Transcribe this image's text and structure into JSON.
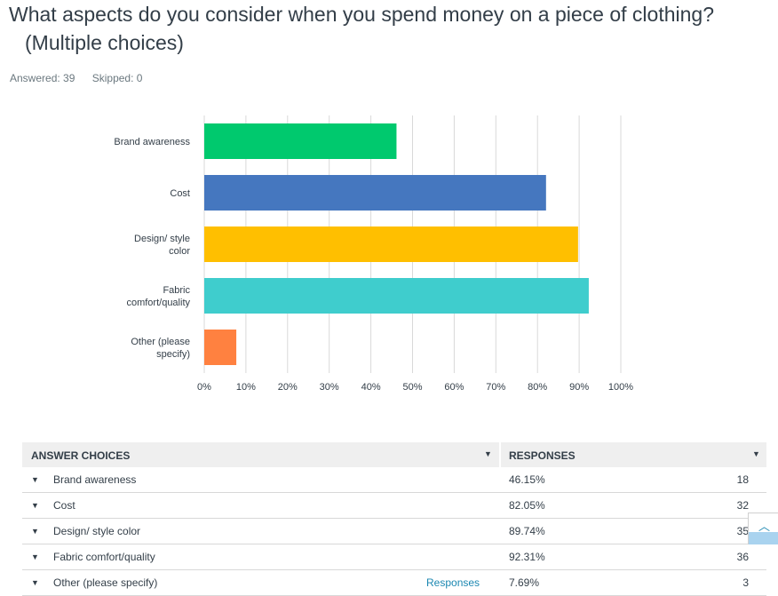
{
  "question": {
    "title_line1": "What aspects do you consider when you spend money on a piece of clothing?",
    "title_line2": "(Multiple choices)",
    "answered": "Answered: 39",
    "skipped": "Skipped: 0"
  },
  "chart_data": {
    "type": "bar",
    "orientation": "horizontal",
    "categories": [
      [
        "Brand awareness"
      ],
      [
        "Cost"
      ],
      [
        "Design/ style",
        "color"
      ],
      [
        "Fabric",
        "comfort/quality"
      ],
      [
        "Other (please",
        "specify)"
      ]
    ],
    "values": [
      46.15,
      82.05,
      89.74,
      92.31,
      7.69
    ],
    "colors": [
      "#00c96e",
      "#4577bf",
      "#ffbf00",
      "#3fcdcd",
      "#ff8140"
    ],
    "x_ticks": [
      "0%",
      "10%",
      "20%",
      "30%",
      "40%",
      "50%",
      "60%",
      "70%",
      "80%",
      "90%",
      "100%"
    ],
    "xlim": [
      0,
      100
    ],
    "grid": true
  },
  "table": {
    "header_choices": "ANSWER CHOICES",
    "header_responses": "RESPONSES",
    "rows": [
      {
        "label": "Brand awareness",
        "pct": "46.15%",
        "count": "18",
        "link": ""
      },
      {
        "label": "Cost",
        "pct": "82.05%",
        "count": "32",
        "link": ""
      },
      {
        "label": "Design/ style color",
        "pct": "89.74%",
        "count": "35",
        "link": ""
      },
      {
        "label": "Fabric comfort/quality",
        "pct": "92.31%",
        "count": "36",
        "link": ""
      },
      {
        "label": "Other (please specify)",
        "pct": "7.69%",
        "count": "3",
        "link": "Responses"
      }
    ]
  },
  "icons": {
    "caret": "caret-down-icon",
    "scroll_top": "chevron-up-icon"
  }
}
